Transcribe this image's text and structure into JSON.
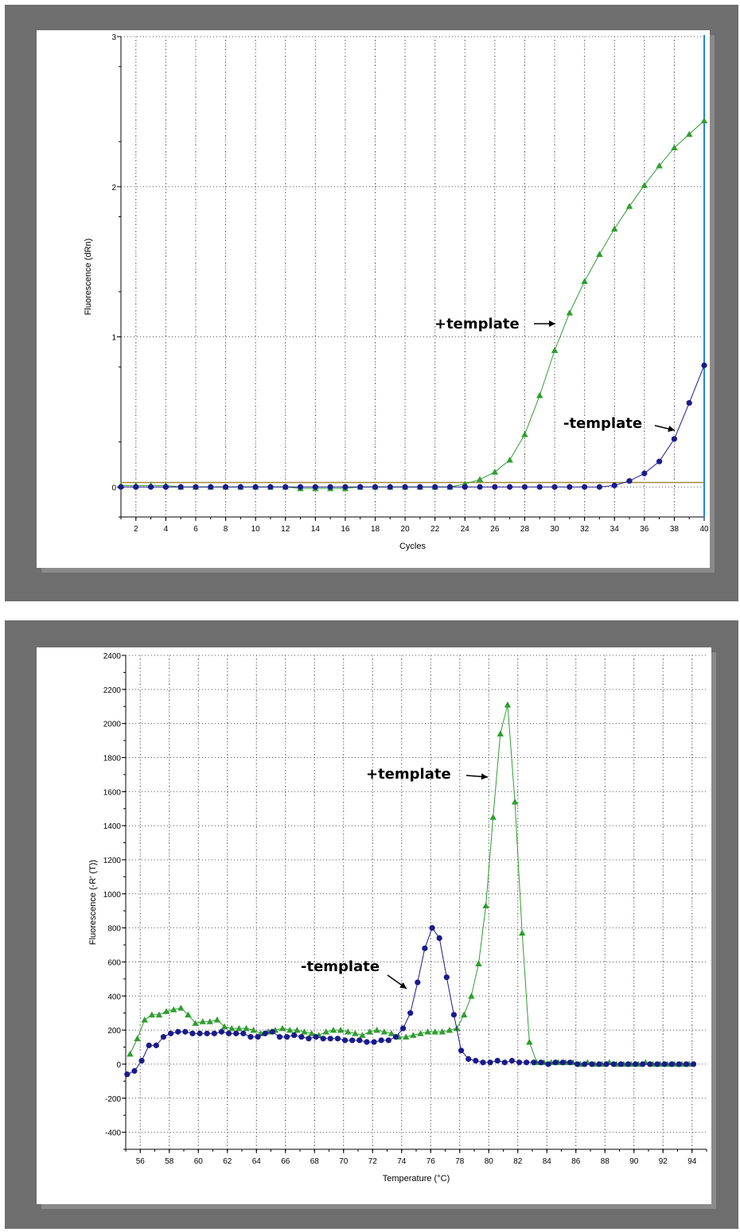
{
  "chart_data": [
    {
      "type": "line",
      "xlabel": "Cycles",
      "ylabel": "Fluorescence (dRn)",
      "xlim": [
        1,
        40
      ],
      "ylim": [
        -0.2,
        3
      ],
      "x_ticks": [
        2,
        4,
        6,
        8,
        10,
        12,
        14,
        16,
        18,
        20,
        22,
        24,
        26,
        28,
        30,
        32,
        34,
        36,
        38,
        40
      ],
      "y_ticks": [
        0,
        1,
        2,
        3
      ],
      "grid": true,
      "threshold": 0.03,
      "threshold_color": "#a08a3a",
      "cursor_x": 40,
      "cursor_color": "#1e88e5",
      "series": [
        {
          "color": "#2e9e2e",
          "marker": "triangle",
          "x": [
            1,
            2,
            3,
            4,
            5,
            6,
            7,
            8,
            9,
            10,
            11,
            12,
            13,
            14,
            15,
            16,
            17,
            18,
            19,
            20,
            21,
            22,
            23,
            24,
            25,
            26,
            27,
            28,
            29,
            30,
            31,
            32,
            33,
            34,
            35,
            36,
            37,
            38,
            39,
            40
          ],
          "y": [
            0.01,
            0.01,
            0.01,
            0.01,
            0,
            0,
            0,
            0,
            0,
            0,
            0,
            0,
            -0.01,
            -0.01,
            -0.01,
            -0.01,
            0,
            0,
            0,
            0,
            0,
            0,
            0,
            0.02,
            0.05,
            0.1,
            0.18,
            0.35,
            0.61,
            0.91,
            1.16,
            1.37,
            1.55,
            1.72,
            1.87,
            2.01,
            2.14,
            2.26,
            2.35,
            2.44
          ],
          "annotation": "+template"
        },
        {
          "color": "#1a1a8c",
          "marker": "circle",
          "x": [
            1,
            2,
            3,
            4,
            5,
            6,
            7,
            8,
            9,
            10,
            11,
            12,
            13,
            14,
            15,
            16,
            17,
            18,
            19,
            20,
            21,
            22,
            23,
            24,
            25,
            26,
            27,
            28,
            29,
            30,
            31,
            32,
            33,
            34,
            35,
            36,
            37,
            38,
            39,
            40
          ],
          "y": [
            0,
            0,
            0,
            0,
            0,
            0,
            0,
            0,
            0,
            0,
            0,
            0,
            0,
            0,
            0,
            0,
            0,
            0,
            0,
            0,
            0,
            0,
            0,
            0,
            0,
            0,
            0,
            0,
            0,
            0,
            0,
            0,
            0,
            0.01,
            0.04,
            0.09,
            0.17,
            0.32,
            0.56,
            0.81
          ],
          "annotation": "-template"
        }
      ]
    },
    {
      "type": "line",
      "xlabel": "Temperature (°C)",
      "ylabel": "Fluorescence (-R' (T))",
      "xlim": [
        55,
        95
      ],
      "ylim": [
        -500,
        2400
      ],
      "x_ticks": [
        56,
        58,
        60,
        62,
        64,
        66,
        68,
        70,
        72,
        74,
        76,
        78,
        80,
        82,
        84,
        86,
        88,
        90,
        92,
        94
      ],
      "y_ticks": [
        -400,
        -200,
        0,
        200,
        400,
        600,
        800,
        1000,
        1200,
        1400,
        1600,
        1800,
        2000,
        2200,
        2400
      ],
      "grid": true,
      "series": [
        {
          "color": "#2e9e2e",
          "marker": "triangle",
          "x": [
            55.3,
            55.8,
            56.3,
            56.8,
            57.3,
            57.8,
            58.3,
            58.8,
            59.3,
            59.8,
            60.3,
            60.8,
            61.3,
            61.8,
            62.3,
            62.8,
            63.3,
            63.8,
            64.3,
            64.8,
            65.3,
            65.8,
            66.3,
            66.8,
            67.3,
            67.8,
            68.3,
            68.8,
            69.3,
            69.8,
            70.3,
            70.8,
            71.3,
            71.8,
            72.3,
            72.8,
            73.3,
            73.8,
            74.3,
            74.8,
            75.3,
            75.8,
            76.3,
            76.8,
            77.3,
            77.8,
            78.3,
            78.8,
            79.3,
            79.8,
            80.3,
            80.8,
            81.3,
            81.8,
            82.3,
            82.8,
            83.3,
            83.8,
            84.3,
            84.8,
            85.3,
            85.8,
            86.3,
            86.8,
            87.3,
            87.8,
            88.3,
            88.8,
            89.3,
            89.8,
            90.3,
            90.8,
            91.3,
            91.8,
            92.3,
            92.8,
            93.3,
            93.8
          ],
          "y": [
            60,
            150,
            260,
            290,
            290,
            310,
            320,
            330,
            290,
            240,
            250,
            250,
            260,
            220,
            210,
            210,
            210,
            200,
            180,
            190,
            200,
            210,
            200,
            200,
            190,
            180,
            170,
            190,
            200,
            200,
            190,
            180,
            170,
            190,
            200,
            190,
            180,
            160,
            160,
            170,
            180,
            190,
            190,
            190,
            200,
            210,
            290,
            400,
            590,
            930,
            1450,
            1940,
            2110,
            1540,
            770,
            130,
            10,
            10,
            10,
            10,
            10,
            10,
            0,
            10,
            0,
            0,
            10,
            0,
            0,
            0,
            0,
            10,
            0,
            0,
            0,
            0,
            0,
            0
          ],
          "annotation": "+template"
        },
        {
          "color": "#1a1a8c",
          "marker": "circle",
          "x": [
            55.1,
            55.6,
            56.1,
            56.6,
            57.1,
            57.6,
            58.1,
            58.6,
            59.1,
            59.6,
            60.1,
            60.6,
            61.1,
            61.6,
            62.1,
            62.6,
            63.1,
            63.6,
            64.1,
            64.6,
            65.1,
            65.6,
            66.1,
            66.6,
            67.1,
            67.6,
            68.1,
            68.6,
            69.1,
            69.6,
            70.1,
            70.6,
            71.1,
            71.6,
            72.1,
            72.6,
            73.1,
            73.6,
            74.1,
            74.6,
            75.1,
            75.6,
            76.1,
            76.6,
            77.1,
            77.6,
            78.1,
            78.6,
            79.1,
            79.6,
            80.1,
            80.6,
            81.1,
            81.6,
            82.1,
            82.6,
            83.1,
            83.6,
            84.1,
            84.6,
            85.1,
            85.6,
            86.1,
            86.6,
            87.1,
            87.6,
            88.1,
            88.6,
            89.1,
            89.6,
            90.1,
            90.6,
            91.1,
            91.6,
            92.1,
            92.6,
            93.1,
            93.6,
            94.1
          ],
          "y": [
            -60,
            -40,
            20,
            110,
            110,
            160,
            180,
            190,
            190,
            180,
            180,
            180,
            180,
            190,
            180,
            180,
            180,
            160,
            160,
            180,
            190,
            160,
            160,
            170,
            160,
            150,
            160,
            150,
            150,
            150,
            140,
            140,
            140,
            130,
            130,
            140,
            140,
            160,
            210,
            300,
            480,
            680,
            800,
            740,
            510,
            290,
            80,
            30,
            20,
            10,
            10,
            20,
            10,
            20,
            10,
            10,
            10,
            10,
            0,
            10,
            10,
            10,
            0,
            0,
            0,
            0,
            0,
            0,
            0,
            0,
            0,
            0,
            0,
            0,
            0,
            0,
            0,
            0,
            0
          ],
          "annotation": "-template"
        }
      ]
    }
  ]
}
